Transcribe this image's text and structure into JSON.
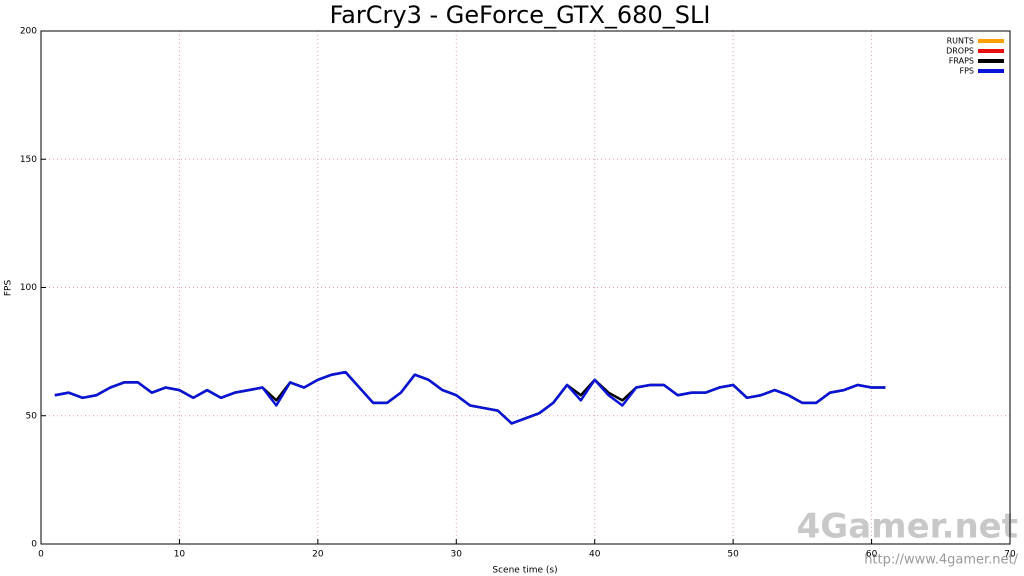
{
  "chart_data": {
    "type": "line",
    "title": "FarCry3 - GeForce_GTX_680_SLI",
    "xlabel": "Scene time (s)",
    "ylabel": "FPS",
    "x": [
      1,
      2,
      3,
      4,
      5,
      6,
      7,
      8,
      9,
      10,
      11,
      12,
      13,
      14,
      15,
      16,
      17,
      18,
      19,
      20,
      21,
      22,
      23,
      24,
      25,
      26,
      27,
      28,
      29,
      30,
      31,
      32,
      33,
      34,
      35,
      36,
      37,
      38,
      39,
      40,
      41,
      42,
      43,
      44,
      45,
      46,
      47,
      48,
      49,
      50,
      51,
      52,
      53,
      54,
      55,
      56,
      57,
      58,
      59,
      60,
      61
    ],
    "series": [
      {
        "name": "RUNTS",
        "color": "#ffa000",
        "values": [
          null,
          null,
          null,
          null,
          null,
          null,
          null,
          null,
          null,
          null,
          null,
          null,
          null,
          null,
          null,
          null,
          null,
          null,
          null,
          null,
          null,
          null,
          null,
          null,
          null,
          null,
          null,
          null,
          null,
          null,
          null,
          null,
          null,
          null,
          null,
          null,
          null,
          null,
          null,
          null,
          null,
          null,
          null,
          null,
          null,
          null,
          null,
          null,
          null,
          null,
          null,
          null,
          null,
          null,
          null,
          null,
          null,
          null,
          null,
          null,
          null
        ]
      },
      {
        "name": "DROPS",
        "color": "#e81010",
        "values": [
          null,
          null,
          null,
          null,
          null,
          null,
          null,
          null,
          null,
          null,
          null,
          null,
          null,
          null,
          null,
          null,
          null,
          null,
          null,
          null,
          null,
          null,
          null,
          null,
          null,
          null,
          null,
          null,
          null,
          null,
          null,
          null,
          null,
          null,
          null,
          null,
          null,
          null,
          null,
          null,
          null,
          null,
          null,
          null,
          null,
          null,
          null,
          null,
          null,
          null,
          null,
          null,
          null,
          null,
          null,
          null,
          null,
          null,
          null,
          null,
          null
        ]
      },
      {
        "name": "FRAPS",
        "color": "#000000",
        "values": [
          58,
          59,
          57,
          58,
          61,
          63,
          63,
          59,
          61,
          60,
          57,
          60,
          57,
          59,
          60,
          61,
          56,
          63,
          61,
          64,
          66,
          67,
          61,
          55,
          55,
          59,
          66,
          64,
          60,
          58,
          54,
          53,
          52,
          47,
          49,
          51,
          55,
          62,
          58,
          64,
          59,
          56,
          61,
          62,
          62,
          58,
          59,
          59,
          61,
          62,
          57,
          58,
          60,
          58,
          55,
          55,
          59,
          60,
          62,
          61,
          61
        ]
      },
      {
        "name": "FPS",
        "color": "#0a14d8",
        "values": [
          58,
          59,
          57,
          58,
          61,
          63,
          63,
          59,
          61,
          60,
          57,
          60,
          57,
          59,
          60,
          61,
          54,
          63,
          61,
          64,
          66,
          67,
          61,
          55,
          55,
          59,
          66,
          64,
          60,
          58,
          54,
          53,
          52,
          47,
          49,
          51,
          55,
          62,
          56,
          64,
          58,
          54,
          61,
          62,
          62,
          58,
          59,
          59,
          61,
          62,
          57,
          58,
          60,
          58,
          55,
          55,
          59,
          60,
          62,
          61,
          61
        ]
      }
    ],
    "xlim": [
      0,
      70
    ],
    "xticks": [
      0,
      10,
      20,
      30,
      40,
      50,
      60,
      70
    ],
    "ylim": [
      0,
      200
    ],
    "yticks": [
      0,
      50,
      100,
      150,
      200
    ],
    "grid": true,
    "legend": "upper right",
    "watermark": "4Gamer.net",
    "watermark_url": "http://www.4gamer.net/"
  }
}
